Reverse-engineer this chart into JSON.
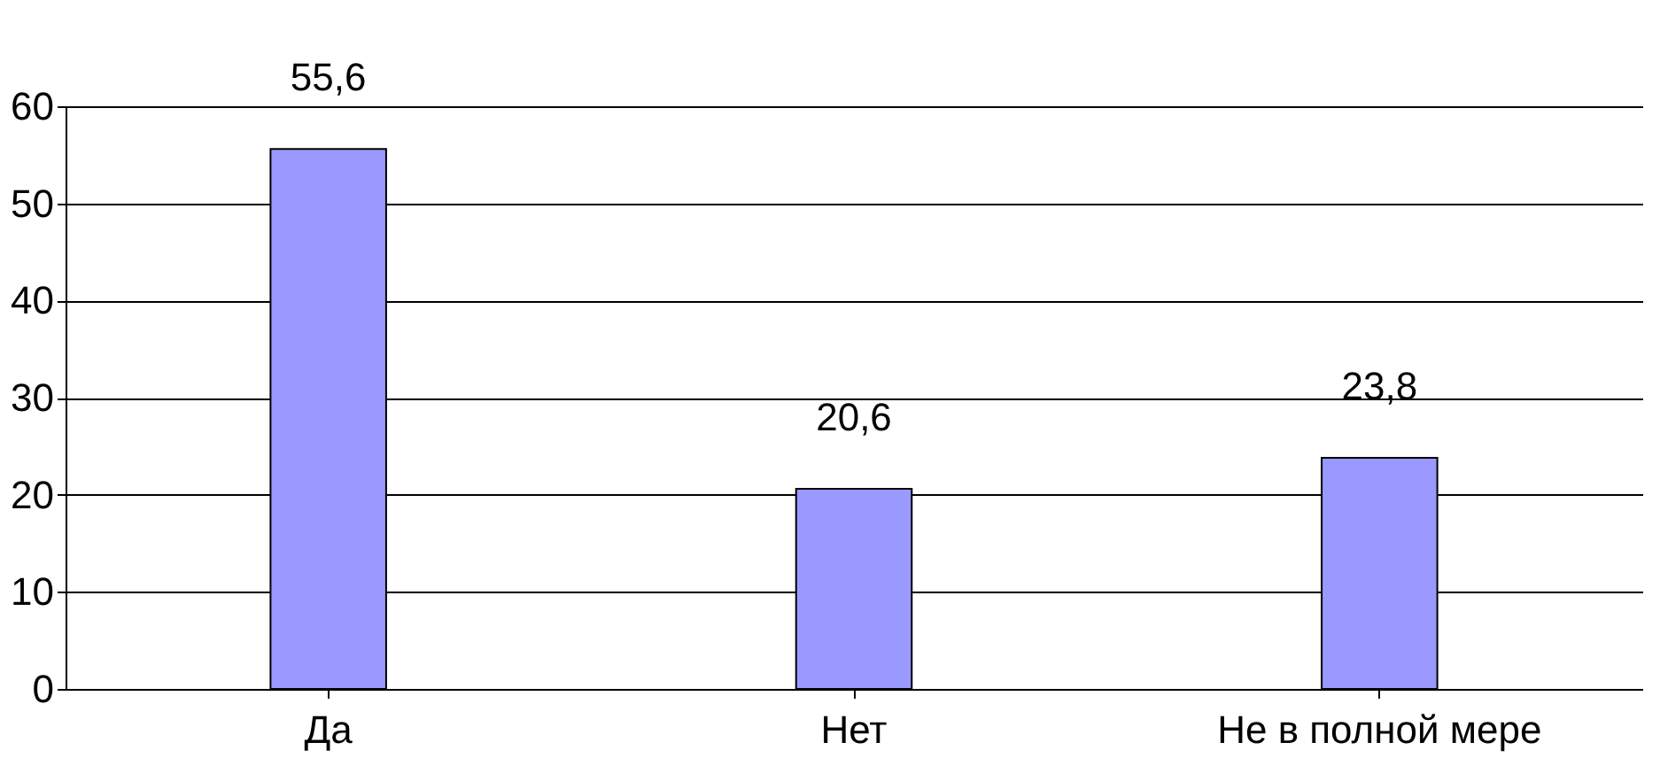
{
  "chart_data": {
    "type": "bar",
    "categories": [
      "Да",
      "Нет",
      "Не в полной мере"
    ],
    "values": [
      55.6,
      20.6,
      23.8
    ],
    "value_labels": [
      "55,6",
      "20,6",
      "23,8"
    ],
    "color": "#9999ff",
    "ylim": [
      0,
      60
    ],
    "yticks": [
      0,
      10,
      20,
      30,
      40,
      50,
      60
    ],
    "grid": "y"
  }
}
